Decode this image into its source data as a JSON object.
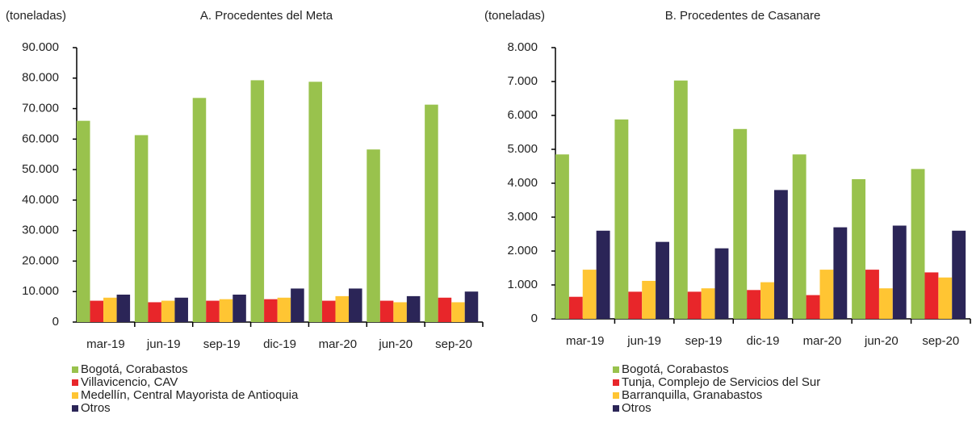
{
  "chart_data": [
    {
      "type": "bar",
      "title": "A. Procedentes del Meta",
      "y_label": "(toneladas)",
      "categories": [
        "mar-19",
        "jun-19",
        "sep-19",
        "dic-19",
        "mar-20",
        "jun-20",
        "sep-20"
      ],
      "series": [
        {
          "name": "Bogotá, Corabastos",
          "color": "#99c24d",
          "values": [
            66000,
            61300,
            73500,
            79300,
            78800,
            56600,
            71300
          ]
        },
        {
          "name": "Villavicencio, CAV",
          "color": "#e8262a",
          "values": [
            7000,
            6500,
            7000,
            7500,
            7000,
            7000,
            8000
          ]
        },
        {
          "name": "Medellín, Central Mayorista de Antioquia",
          "color": "#ffc533",
          "values": [
            8000,
            7000,
            7500,
            8000,
            8500,
            6500,
            6500
          ]
        },
        {
          "name": "Otros",
          "color": "#2b2557",
          "values": [
            9000,
            8000,
            9000,
            11000,
            11000,
            8500,
            10000
          ]
        }
      ],
      "ylim": [
        0,
        90000
      ],
      "yticks": [
        0,
        {
          "value": 10000,
          "label": "10.000"
        },
        {
          "value": 20000,
          "label": "20.000"
        },
        {
          "value": 30000,
          "label": "30.000"
        },
        {
          "value": 40000,
          "label": "40.000"
        },
        {
          "value": 50000,
          "label": "50.000"
        },
        {
          "value": 60000,
          "label": "60.000"
        },
        {
          "value": 70000,
          "label": "70.000"
        },
        {
          "value": 80000,
          "label": "80.000"
        },
        {
          "value": 90000,
          "label": "90.000"
        }
      ],
      "grid": false
    },
    {
      "type": "bar",
      "title": "B. Procedentes de Casanare",
      "y_label": "(toneladas)",
      "categories": [
        "mar-19",
        "jun-19",
        "sep-19",
        "dic-19",
        "mar-20",
        "jun-20",
        "sep-20"
      ],
      "series": [
        {
          "name": "Bogotá, Corabastos",
          "color": "#99c24d",
          "values": [
            4850,
            5880,
            7030,
            5600,
            4850,
            4120,
            4420
          ]
        },
        {
          "name": "Tunja, Complejo de Servicios del Sur",
          "color": "#e8262a",
          "values": [
            650,
            800,
            800,
            850,
            700,
            1450,
            1370
          ]
        },
        {
          "name": "Barranquilla, Granabastos",
          "color": "#ffc533",
          "values": [
            1450,
            1120,
            900,
            1080,
            1450,
            900,
            1220
          ]
        },
        {
          "name": "Otros",
          "color": "#2b2557",
          "values": [
            2600,
            2270,
            2080,
            3800,
            2700,
            2750,
            2600
          ]
        }
      ],
      "ylim": [
        0,
        8000
      ],
      "yticks": [
        0,
        {
          "value": 1000,
          "label": "1.000"
        },
        {
          "value": 2000,
          "label": "2.000"
        },
        {
          "value": 3000,
          "label": "3.000"
        },
        {
          "value": 4000,
          "label": "4.000"
        },
        {
          "value": 5000,
          "label": "5.000"
        },
        {
          "value": 6000,
          "label": "6.000"
        },
        {
          "value": 7000,
          "label": "7.000"
        },
        {
          "value": 8000,
          "label": "8.000"
        }
      ],
      "grid": false
    }
  ]
}
